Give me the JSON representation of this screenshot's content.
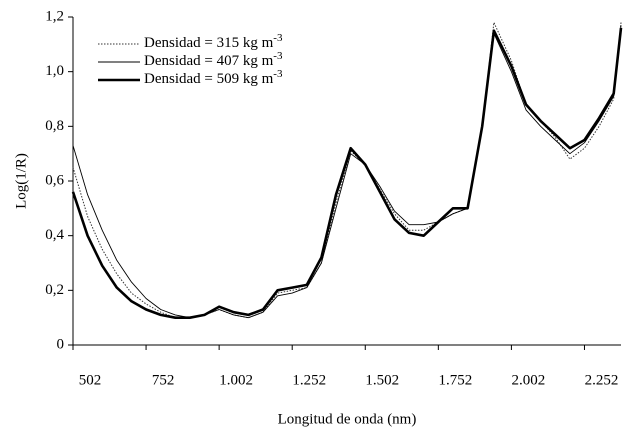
{
  "chart_data": {
    "type": "line",
    "x_label": "Longitud de onda (nm)",
    "y_label": "Log(1/R)",
    "x": [
      502,
      552,
      602,
      652,
      702,
      752,
      802,
      852,
      902,
      952,
      1002,
      1052,
      1102,
      1152,
      1202,
      1252,
      1302,
      1352,
      1402,
      1452,
      1502,
      1552,
      1602,
      1652,
      1702,
      1752,
      1802,
      1852,
      1902,
      1942,
      2002,
      2052,
      2102,
      2152,
      2202,
      2252,
      2302,
      2352,
      2377
    ],
    "xlim": [
      502,
      2377
    ],
    "xticks": [
      502,
      752,
      {
        "value": 1002,
        "label": "1.002"
      },
      {
        "value": 1252,
        "label": "1.252"
      },
      {
        "value": 1502,
        "label": "1.502"
      },
      {
        "value": 1752,
        "label": "1.752"
      },
      {
        "value": 2002,
        "label": "2.002"
      },
      {
        "value": 2252,
        "label": "2.252"
      }
    ],
    "ylim": [
      0,
      1.2
    ],
    "yticks": [
      0,
      {
        "value": 0.2,
        "label": "0,2"
      },
      {
        "value": 0.4,
        "label": "0,4"
      },
      {
        "value": 0.6,
        "label": "0,6"
      },
      {
        "value": 0.8,
        "label": "0,8"
      },
      {
        "value": 1.0,
        "label": "1,0"
      },
      {
        "value": 1.2,
        "label": "1,2"
      }
    ],
    "legend": "upper left",
    "series": [
      {
        "name": "Densidad = 315 kg m",
        "unit_exponent": "-3",
        "color": "#333333",
        "style": "dotted",
        "values": [
          0.65,
          0.47,
          0.35,
          0.26,
          0.19,
          0.15,
          0.12,
          0.1,
          0.1,
          0.11,
          0.13,
          0.11,
          0.1,
          0.12,
          0.19,
          0.2,
          0.21,
          0.3,
          0.52,
          0.71,
          0.66,
          0.57,
          0.48,
          0.42,
          0.42,
          0.45,
          0.48,
          0.5,
          0.8,
          1.18,
          1.04,
          0.88,
          0.82,
          0.76,
          0.68,
          0.72,
          0.8,
          0.9,
          1.18
        ]
      },
      {
        "name": "Densidad = 407 kg m",
        "unit_exponent": "-3",
        "color": "#000000",
        "style": "thin",
        "values": [
          0.73,
          0.55,
          0.42,
          0.31,
          0.23,
          0.17,
          0.13,
          0.11,
          0.1,
          0.11,
          0.13,
          0.11,
          0.1,
          0.12,
          0.18,
          0.19,
          0.21,
          0.3,
          0.5,
          0.7,
          0.66,
          0.58,
          0.49,
          0.44,
          0.44,
          0.45,
          0.48,
          0.5,
          0.8,
          1.14,
          1.0,
          0.86,
          0.8,
          0.75,
          0.7,
          0.74,
          0.82,
          0.91,
          1.17
        ]
      },
      {
        "name": "Densidad = 509 kg m",
        "unit_exponent": "-3",
        "color": "#000000",
        "style": "thick",
        "values": [
          0.56,
          0.4,
          0.29,
          0.21,
          0.16,
          0.13,
          0.11,
          0.1,
          0.1,
          0.11,
          0.14,
          0.12,
          0.11,
          0.13,
          0.2,
          0.21,
          0.22,
          0.32,
          0.55,
          0.72,
          0.66,
          0.56,
          0.46,
          0.41,
          0.4,
          0.45,
          0.5,
          0.5,
          0.8,
          1.15,
          1.02,
          0.88,
          0.82,
          0.77,
          0.72,
          0.75,
          0.83,
          0.92,
          1.16
        ]
      }
    ]
  }
}
